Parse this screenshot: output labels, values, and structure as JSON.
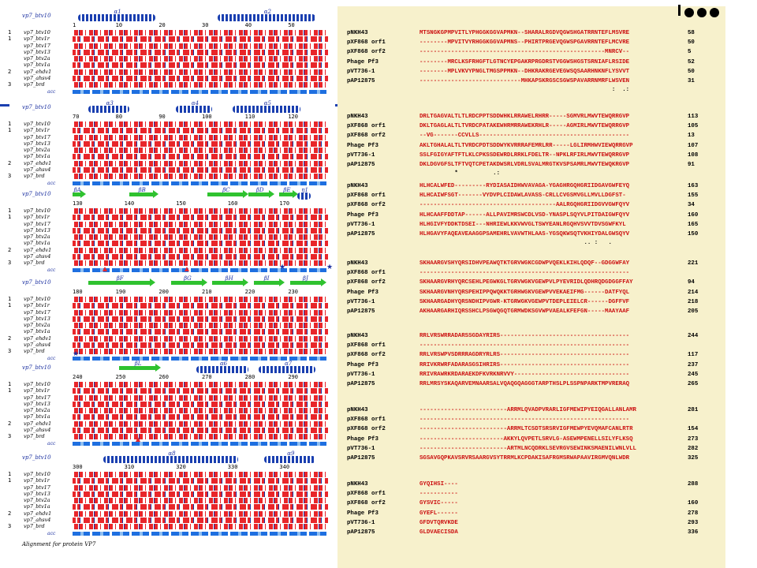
{
  "left_panel": {
    "footer": "Alignment for protein VP7",
    "accessibility_label": "acc",
    "blocks": [
      {
        "ref": "vp7_btv10",
        "ss": [
          "α1",
          "α2"
        ],
        "nums": [
          "1",
          "10",
          "20",
          "30",
          "40",
          "50"
        ]
      },
      {
        "ref": "vp7_btv10",
        "ss": [
          "α3",
          "α4",
          "α5"
        ],
        "nums": [
          "70",
          "80",
          "90",
          "100",
          "110",
          "120"
        ]
      },
      {
        "ref": "vp7_btv10",
        "ss": [
          "βA",
          "βB",
          "βC",
          "βD",
          "βE",
          "η1"
        ],
        "nums": [
          "130",
          "140",
          "150",
          "160",
          "170"
        ]
      },
      {
        "ref": "vp7_btv10",
        "ss": [
          "βF",
          "βG",
          "βH",
          "βI",
          "βJ"
        ],
        "nums": [
          "180",
          "190",
          "200",
          "210",
          "220",
          "230"
        ]
      },
      {
        "ref": "vp7_btv10",
        "ss": [
          "βL",
          "α6",
          "α7"
        ],
        "nums": [
          "240",
          "250",
          "260",
          "270",
          "280",
          "290"
        ]
      },
      {
        "ref": "vp7_btv10",
        "ss": [
          "α8",
          "α9"
        ],
        "nums": [
          "300",
          "310",
          "320",
          "330",
          "340"
        ]
      }
    ],
    "sequences": [
      {
        "group": "1",
        "name": "vp7_btv10"
      },
      {
        "group": "1",
        "name": "vp7_btv1r"
      },
      {
        "group": "",
        "name": "vp7_btv17"
      },
      {
        "group": "",
        "name": "vp7_btv13"
      },
      {
        "group": "",
        "name": "vp7_btv2a"
      },
      {
        "group": "",
        "name": "vp7_btv1a"
      },
      {
        "group": "2",
        "name": "vp7_ehdv1"
      },
      {
        "group": "",
        "name": "vp7_ahsv4"
      },
      {
        "group": "3",
        "name": "vp7_brd"
      }
    ]
  },
  "right_panel": {
    "blocks": [
      {
        "rows": [
          {
            "name": "pNKH43",
            "seq": "MTSNGKGPMPVITLYPHGGKGGVAPMKN--SHARALRGDVQGWSHGATRRNTEFLMSVRE",
            "end": "58"
          },
          {
            "name": "pXF868 orf1",
            "seq": "--------MPVITVYRHGGKGGVAPMNS--PHIRTPRGEVQGWSPGAVRRNTEFLMCVRE",
            "end": "50"
          },
          {
            "name": "pXF868 orf2",
            "seq": "-----------------------------------------------------MNRCV--",
            "end": "5"
          },
          {
            "name": "Phage Pf3",
            "seq": "--------MRCLKSFRHGFTLGTNCYEPGAKRPRGDRSTVGGWSHGSTSRNIAFLRSIDE",
            "end": "52"
          },
          {
            "name": "pVT736-1",
            "seq": "--------MPLVKVYPNGLTMGSPPMKN--DHKRAKRGEVEGWSQSAARHNKNFLYSVVT",
            "end": "50"
          },
          {
            "name": "pAP12875",
            "seq": "-----------------------------MHKAPSKRGSCSGWSPAVARRNMRFLWSVEN",
            "end": "31"
          }
        ],
        "cons": "                                                       :  .:"
      },
      {
        "rows": [
          {
            "name": "pNKH43",
            "seq": "DRLTGAGVALTLTLRDCPPTSDDWHKLRRAWELRHRR-----SGMVRLMWVTEWQRRGVP",
            "end": "113"
          },
          {
            "name": "pXF868 orf1",
            "seq": "DKLTGAGLALTLTVRDCPATAKEWHRMRRAWEKRHLR-----AGMIRLMWVTEWQRRGVP",
            "end": "105"
          },
          {
            "name": "pXF868 orf2",
            "seq": "--VG-------CCVLLS-------------------------------------------",
            "end": "13"
          },
          {
            "name": "Phage Pf3",
            "seq": "AKLTGHALALTLTVRDCPDTSDDWYKVRRRAFEMRLRR-----LGLIRMHWVIEWQRRGVP",
            "end": "107"
          },
          {
            "name": "pVT736-1",
            "seq": "SSLFGIGYAFTFTLKLCPKSSDEWRDLRRKLFDELTR--NPKLRFIRLMWVTEWQRRGVP",
            "end": "108"
          },
          {
            "name": "pAP12875",
            "seq": "DKLDGVGFSLTFTVQTCPETAKDWSRLVDRLSVALMRGTKVSPSAMRLMWVTEWQKRGVP",
            "end": "91"
          }
        ],
        "cons": "          *          .:                                      "
      },
      {
        "rows": [
          {
            "name": "pNKH43",
            "seq": "HLHCALWFED---------RYDIASAIDHWVAVAGA-YGAGHRGQHGRIIDGAVGWFEYQ",
            "end": "163"
          },
          {
            "name": "pXF868 orf1",
            "seq": "HLHCAIWFSGT-------VYDVPLCIDAWLAVASS-CRLLCVGSMVGLLMVLLDGFST-",
            "end": "155"
          },
          {
            "name": "pXF868 orf2",
            "seq": "---------------------------------------AALRGQHGRIIDGVVGWFQYV",
            "end": "34"
          },
          {
            "name": "Phage Pf3",
            "seq": "HLHCAAFFDDTAP------ALLPAVIMRSWCDLVSD-YNASPLSQYVLPITDAIGWFQYV",
            "end": "160"
          },
          {
            "name": "pVT736-1",
            "seq": "HLHGIVFYDDKTDSEI---NHRIEWLKKVWVGLTSWYEANLRGQHVSVVTDVSGWFKYL",
            "end": "165"
          },
          {
            "name": "pAP12875",
            "seq": "HLHGAVYFAQEAVEAAGGPSAMEHRLVAVWTHLAAS-YGSQKWSQTVKHIYDALGWSQYV",
            "end": "150"
          }
        ],
        "cons": "                                               .. :   .  "
      },
      {
        "rows": [
          {
            "name": "pNKH43",
            "seq": "SKHAARGVSHYQRSIDHVPEAWQTKTGRVWGKCGDWPVQEKLKIHLQDQF--GDGGWFAY",
            "end": "221"
          },
          {
            "name": "pXF868 orf1",
            "seq": "------------------------------------------------------------",
            "end": ""
          },
          {
            "name": "pXF868 orf2",
            "seq": "SKHAARGVRHYQRCSEHLPEGWKGLTGRVWGKVGEWPVLPYEVRIDLQDHRQDGDGGFFAY",
            "end": "94"
          },
          {
            "name": "Phage Pf3",
            "seq": "SKHAARGVNHYQRSPEHIPPQWQKKTGRHWGKVGEWPVVEKAEIFMG------DATFYQL",
            "end": "214"
          },
          {
            "name": "pVT736-1",
            "seq": "SKHAARGADHYQRSNDHIPVGWR-KTGRWGKVGEWPVTDEPLEIELCR------DGFFVF",
            "end": "218"
          },
          {
            "name": "pAP12875",
            "seq": "AKHAARGARHIQRSSHCLPSGWQGQTGRMWDKSGVWPVAEALKFEFGN-----MAAYAAF",
            "end": "205"
          }
        ],
        "cons": ""
      },
      {
        "rows": [
          {
            "name": "pNKH43",
            "seq": "RRLVRSWRRADARSSGDAYRIRS-------------------------------------",
            "end": "244"
          },
          {
            "name": "pXF868 orf1",
            "seq": "------------------------------------------------------------",
            "end": ""
          },
          {
            "name": "pXF868 orf2",
            "seq": "RRLVRSWPVSDRRRAGDRYRLRS-------------------------------------",
            "end": "117"
          },
          {
            "name": "Phage Pf3",
            "seq": "RRIVKRWRFADARASGSIHRIRS-------------------------------------",
            "end": "237"
          },
          {
            "name": "pVT736-1",
            "seq": "RRIVRAWRKRDARAEKDFKVRKNRVVY---------------------------------",
            "end": "245"
          },
          {
            "name": "pAP12875",
            "seq": "RRLMRSYSKAQARVEMNAARSALVQAQGQAGGGTARPTHSLPLSSPNPARKTMPVRERAQ",
            "end": "265"
          }
        ],
        "cons": ""
      },
      {
        "rows": [
          {
            "name": "pNKH43",
            "seq": "-------------------------ARRMLQVADPVRARLIGFMEWIPYEIQGALLANLAMR",
            "end": "281"
          },
          {
            "name": "pXF868 orf1",
            "seq": "------------------------------------------------------------",
            "end": ""
          },
          {
            "name": "pXF868 orf2",
            "seq": "-------------------------ARRMLTCSDTSRSRVIGFMEWPYEVQMAFCANLRTR",
            "end": "154"
          },
          {
            "name": "Phage Pf3",
            "seq": "------------------------AKKYLQVPETLSRVLG-ASEWMPENELLSILYFLKSQ",
            "end": "273"
          },
          {
            "name": "pVT736-1",
            "seq": "-------------------------ARTMLNCQDRKLSEVRGVSEWINKSMAENILWNLVLL",
            "end": "282"
          },
          {
            "name": "pAP12875",
            "seq": "SGSAVGQPKAVSRVRSAARGVSYTRRMLKCPDAKISAFRGMSRWAPAAVIRGMVQNLWDR",
            "end": "325"
          }
        ],
        "cons": ""
      },
      {
        "rows": [
          {
            "name": "pNKH43",
            "seq": "GYQIHSI----",
            "end": "288"
          },
          {
            "name": "pXF868 orf1",
            "seq": "-----------",
            "end": ""
          },
          {
            "name": "pXF868 orf2",
            "seq": "GYSVIC-----",
            "end": "160"
          },
          {
            "name": "Phage Pf3",
            "seq": "GYEFL------",
            "end": "278"
          },
          {
            "name": "pVT736-1",
            "seq": "GFDVTQRVKDE",
            "end": "293"
          },
          {
            "name": "pAP12875",
            "seq": "GLDVAECISDA",
            "end": "336"
          }
        ],
        "cons": ""
      }
    ]
  },
  "colors": {
    "identity_red": "#e8262a",
    "box_blue": "#1a2fa0",
    "strand_green": "#2fc22f",
    "panel_bg": "#f7f1cc"
  }
}
